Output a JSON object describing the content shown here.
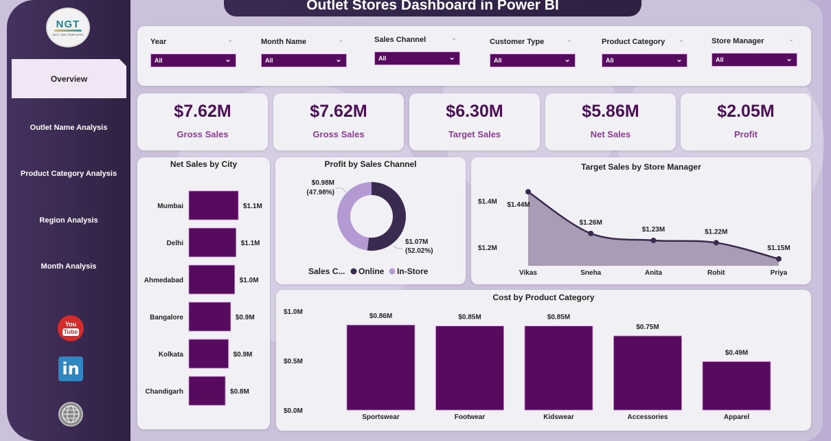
{
  "title": "Outlet Stores Dashboard in Power BI",
  "logo": {
    "text": "NGT",
    "subtitle": "NEXT GEN TEMPLATES"
  },
  "sidebar": {
    "items": [
      {
        "label": "Overview",
        "active": true
      },
      {
        "label": "Outlet Name Analysis",
        "active": false
      },
      {
        "label": "Product Category Analysis",
        "active": false
      },
      {
        "label": "Region Analysis",
        "active": false
      },
      {
        "label": "Month Analysis",
        "active": false
      }
    ],
    "social": [
      {
        "icon": "youtube-icon",
        "line1": "You",
        "line2": "Tube"
      },
      {
        "icon": "linkedin-icon",
        "text": "in"
      },
      {
        "icon": "website-globe-icon",
        "text": "www"
      }
    ]
  },
  "filters": [
    {
      "label": "Year",
      "value": "All"
    },
    {
      "label": "Month Name",
      "value": "All"
    },
    {
      "label": "Sales Channel",
      "value": "All"
    },
    {
      "label": "Customer Type",
      "value": "All"
    },
    {
      "label": "Product Category",
      "value": "All"
    },
    {
      "label": "Store Manager",
      "value": "All"
    }
  ],
  "kpis": [
    {
      "value": "$7.62M",
      "label": "Gross Sales"
    },
    {
      "value": "$7.62M",
      "label": "Gross Sales"
    },
    {
      "value": "$6.30M",
      "label": "Target Sales"
    },
    {
      "value": "$5.86M",
      "label": "Net Sales"
    },
    {
      "value": "$2.05M",
      "label": "Profit"
    }
  ],
  "colors": {
    "primary": "#560b5f",
    "kpi_value": "#4a0f55",
    "kpi_label": "#8b3d93",
    "online": "#3b2a50",
    "in_store": "#b49ad2",
    "area_fill": "#a99cb5",
    "line": "#3b2a50"
  },
  "chart_data": [
    {
      "type": "bar",
      "orientation": "horizontal",
      "title": "Net Sales by City",
      "categories": [
        "Mumbai",
        "Delhi",
        "Ahmedabad",
        "Bangalore",
        "Kolkata",
        "Chandigarh"
      ],
      "values": [
        1.1,
        1.05,
        1.02,
        0.93,
        0.88,
        0.81
      ],
      "data_labels": [
        "$1.1M",
        "$1.1M",
        "$1.0M",
        "$0.9M",
        "$0.9M",
        "$0.8M"
      ],
      "unit": "M"
    },
    {
      "type": "pie",
      "donut": true,
      "title": "Profit by Sales Channel",
      "legend_title": "Sales C...",
      "legend_position": "bottom",
      "slices": [
        {
          "name": "Online",
          "value": 1.07,
          "percent": 52.02,
          "label": "$1.07M",
          "pct_label": "(52.02%)"
        },
        {
          "name": "In-Store",
          "value": 0.98,
          "percent": 47.98,
          "label": "$0.98M",
          "pct_label": "(47.98%)"
        }
      ]
    },
    {
      "type": "area",
      "title": "Target Sales by Store Manager",
      "categories": [
        "Vikas",
        "Sneha",
        "Anita",
        "Rohit",
        "Priya"
      ],
      "values": [
        1.44,
        1.26,
        1.23,
        1.22,
        1.15
      ],
      "data_labels": [
        "$1.44M",
        "$1.26M",
        "$1.23M",
        "$1.22M",
        "$1.15M"
      ],
      "y_ticks": [
        1.2,
        1.4
      ],
      "y_tick_labels": [
        "$1.2M",
        "$1.4M"
      ],
      "ylim": [
        1.12,
        1.5
      ]
    },
    {
      "type": "bar",
      "orientation": "vertical",
      "title": "Cost by Product Category",
      "categories": [
        "Sportswear",
        "Footwear",
        "Kidswear",
        "Accessories",
        "Apparel"
      ],
      "values": [
        0.86,
        0.85,
        0.85,
        0.75,
        0.49
      ],
      "data_labels": [
        "$0.86M",
        "$0.85M",
        "$0.85M",
        "$0.75M",
        "$0.49M"
      ],
      "y_ticks": [
        0,
        0.5,
        1.0
      ],
      "y_tick_labels": [
        "$0.0M",
        "$0.5M",
        "$1.0M"
      ],
      "ylim": [
        0,
        1.0
      ]
    }
  ]
}
